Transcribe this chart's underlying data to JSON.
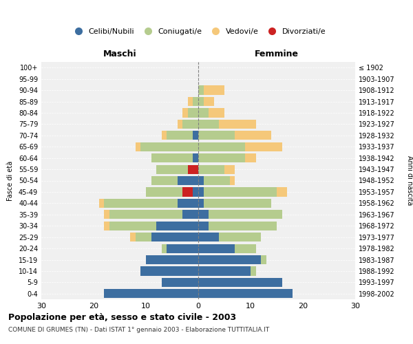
{
  "age_groups": [
    "100+",
    "95-99",
    "90-94",
    "85-89",
    "80-84",
    "75-79",
    "70-74",
    "65-69",
    "60-64",
    "55-59",
    "50-54",
    "45-49",
    "40-44",
    "35-39",
    "30-34",
    "25-29",
    "20-24",
    "15-19",
    "10-14",
    "5-9",
    "0-4"
  ],
  "birth_years": [
    "≤ 1902",
    "1903-1907",
    "1908-1912",
    "1913-1917",
    "1918-1922",
    "1923-1927",
    "1928-1932",
    "1933-1937",
    "1938-1942",
    "1943-1947",
    "1948-1952",
    "1953-1957",
    "1958-1962",
    "1963-1967",
    "1968-1972",
    "1973-1977",
    "1978-1982",
    "1983-1987",
    "1988-1992",
    "1993-1997",
    "1998-2002"
  ],
  "males": {
    "celibi": [
      0,
      0,
      0,
      0,
      0,
      0,
      1,
      0,
      1,
      0,
      4,
      1,
      4,
      3,
      8,
      9,
      6,
      10,
      11,
      7,
      18
    ],
    "coniugati": [
      0,
      0,
      0,
      1,
      2,
      3,
      5,
      11,
      8,
      8,
      5,
      9,
      14,
      14,
      9,
      3,
      1,
      0,
      0,
      0,
      0
    ],
    "vedovi": [
      0,
      0,
      0,
      1,
      1,
      1,
      1,
      1,
      0,
      0,
      0,
      0,
      1,
      1,
      1,
      1,
      0,
      0,
      0,
      0,
      0
    ],
    "divorziati": [
      0,
      0,
      0,
      0,
      0,
      0,
      0,
      0,
      0,
      2,
      0,
      2,
      0,
      0,
      0,
      0,
      0,
      0,
      0,
      0,
      0
    ]
  },
  "females": {
    "nubili": [
      0,
      0,
      0,
      0,
      0,
      0,
      0,
      0,
      0,
      0,
      1,
      1,
      1,
      2,
      2,
      4,
      7,
      12,
      10,
      16,
      18
    ],
    "coniugate": [
      0,
      0,
      1,
      1,
      2,
      4,
      7,
      9,
      9,
      5,
      5,
      14,
      13,
      14,
      13,
      8,
      4,
      1,
      1,
      0,
      0
    ],
    "vedove": [
      0,
      0,
      4,
      2,
      3,
      7,
      7,
      7,
      2,
      2,
      1,
      2,
      0,
      0,
      0,
      0,
      0,
      0,
      0,
      0,
      0
    ],
    "divorziate": [
      0,
      0,
      0,
      0,
      0,
      0,
      0,
      0,
      0,
      0,
      0,
      0,
      0,
      0,
      0,
      0,
      0,
      0,
      0,
      0,
      0
    ]
  },
  "color_celibi": "#3d6ea0",
  "color_coniugati": "#b5cc8e",
  "color_vedovi": "#f5c87a",
  "color_divorziati": "#cc2222",
  "xlim": 30,
  "title": "Popolazione per età, sesso e stato civile - 2003",
  "subtitle": "COMUNE DI GRUMES (TN) - Dati ISTAT 1° gennaio 2003 - Elaborazione TUTTITALIA.IT",
  "bg_color": "#f0f0f0"
}
